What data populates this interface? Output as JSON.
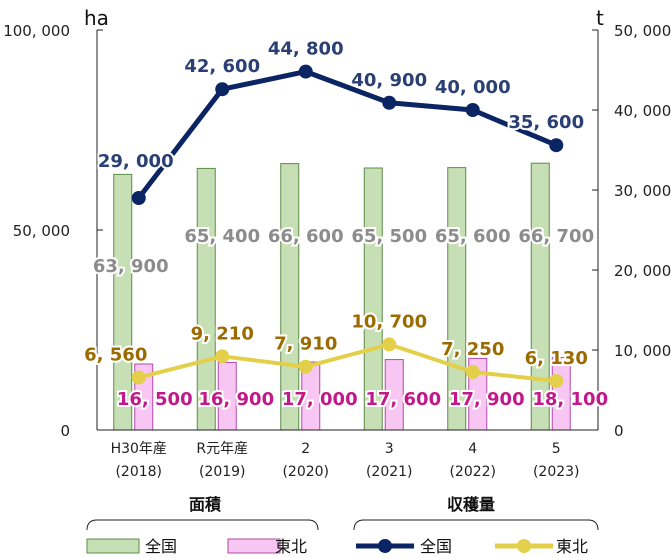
{
  "chart_data": {
    "type": "bar+line",
    "categories": [
      {
        "line1": "H30年産",
        "line2": "(2018)"
      },
      {
        "line1": "R元年産",
        "line2": "(2019)"
      },
      {
        "line1": "2",
        "line2": "(2020)"
      },
      {
        "line1": "3",
        "line2": "(2021)"
      },
      {
        "line1": "4",
        "line2": "(2022)"
      },
      {
        "line1": "5",
        "line2": "(2023)"
      }
    ],
    "left_axis": {
      "unit": "ha",
      "ylim": [
        0,
        100000
      ],
      "ticks": [
        0,
        50000,
        100000
      ],
      "tick_labels": [
        "0",
        "50, 000",
        "100, 000"
      ]
    },
    "right_axis": {
      "unit": "t",
      "ylim": [
        0,
        50000
      ],
      "ticks": [
        0,
        10000,
        20000,
        30000,
        40000,
        50000
      ],
      "tick_labels": [
        "0",
        "10, 000",
        "20, 000",
        "30, 000",
        "40, 000",
        "50, 000"
      ]
    },
    "bar_series": [
      {
        "name": "全国",
        "axis": "left",
        "values": [
          63900,
          65400,
          66600,
          65500,
          65600,
          66700
        ],
        "labels": [
          "63, 900",
          "65, 400",
          "66, 600",
          "65, 500",
          "65, 600",
          "66, 700"
        ],
        "color": "#c6dfb4",
        "border": "#5e8c4a",
        "label_color": "#8c8c8c"
      },
      {
        "name": "東北",
        "axis": "left",
        "values": [
          16500,
          16900,
          17000,
          17600,
          17900,
          18100
        ],
        "labels": [
          "16, 500",
          "16, 900",
          "17, 000",
          "17, 600",
          "17, 900",
          "18, 100"
        ],
        "color": "#f7c6f2",
        "border": "#b04aa6",
        "label_color": "#c2198a"
      }
    ],
    "line_series": [
      {
        "name": "全国",
        "axis": "right",
        "values": [
          29000,
          42600,
          44800,
          40900,
          40000,
          35600
        ],
        "labels": [
          "29, 000",
          "42, 600",
          "44, 800",
          "40, 900",
          "40, 000",
          "35, 600"
        ],
        "color": "#0b2463",
        "label_color": "#2a3f73"
      },
      {
        "name": "東北",
        "axis": "right",
        "values": [
          6560,
          9210,
          7910,
          10700,
          7250,
          6130
        ],
        "labels": [
          "6, 560",
          "9, 210",
          "7, 910",
          "10, 700",
          "7, 250",
          "6, 130"
        ],
        "color": "#e3cf4a",
        "label_color": "#9c6b00"
      }
    ],
    "group_labels": {
      "bars": "面積",
      "lines": "収穫量"
    },
    "legend": {
      "placement": "bottom",
      "items": [
        {
          "kind": "bar",
          "label": "全国",
          "color": "#c6dfb4"
        },
        {
          "kind": "bar",
          "label": "東北",
          "color": "#f7c6f2"
        },
        {
          "kind": "line",
          "label": "全国",
          "color": "#0b2463"
        },
        {
          "kind": "line",
          "label": "東北",
          "color": "#e3cf4a"
        }
      ]
    },
    "grid": false
  }
}
